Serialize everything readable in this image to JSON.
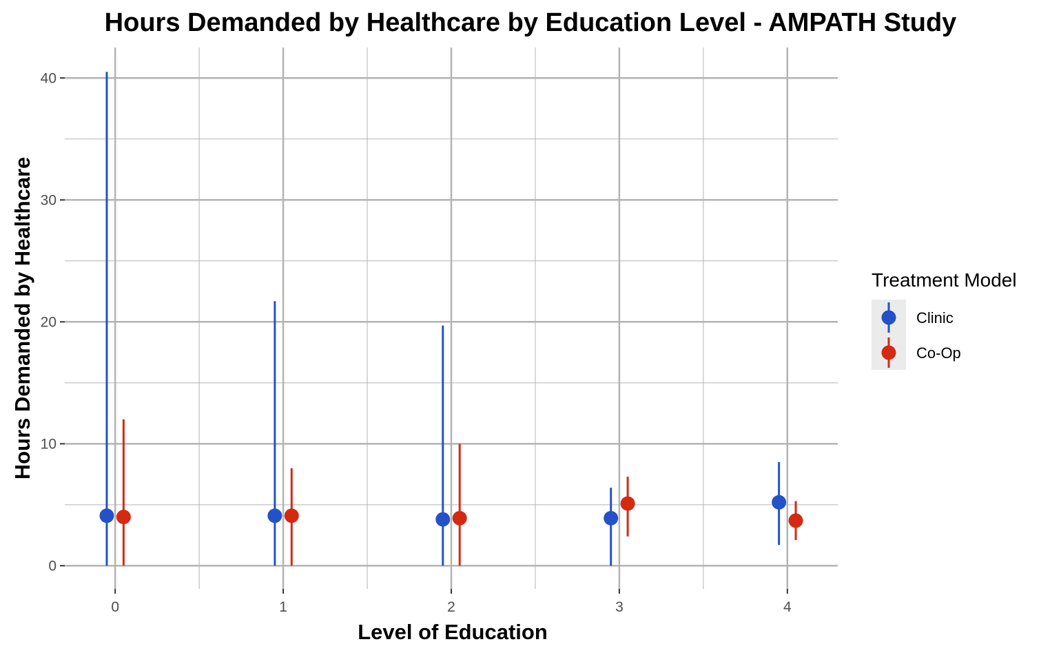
{
  "chart_data": {
    "type": "scatter",
    "subtype": "point-range",
    "title": "Hours Demanded by Healthcare by Education Level - AMPATH Study",
    "xlabel": "Level of Education",
    "ylabel": "Hours Demanded by Healthcare",
    "x": [
      0,
      1,
      2,
      3,
      4
    ],
    "xlim": [
      -0.3,
      4.3
    ],
    "ylim": [
      -1.9,
      42.5
    ],
    "yticks": [
      0,
      10,
      20,
      30,
      40
    ],
    "xticks": [
      0,
      1,
      2,
      3,
      4
    ],
    "grid": true,
    "legend": {
      "title": "Treatment Model",
      "position": "right"
    },
    "series": [
      {
        "name": "Clinic",
        "color": "#2451c7",
        "y": [
          4.1,
          4.1,
          3.8,
          3.9,
          5.2
        ],
        "ymin": [
          0,
          0,
          0,
          0,
          1.7
        ],
        "ymax": [
          40.5,
          21.7,
          19.7,
          6.4,
          8.5
        ]
      },
      {
        "name": "Co-Op",
        "color": "#d42a12",
        "y": [
          4.0,
          4.1,
          3.9,
          5.1,
          3.7
        ],
        "ymin": [
          0,
          0,
          0,
          2.4,
          2.1
        ],
        "ymax": [
          12.0,
          8.0,
          10.0,
          7.3,
          5.3
        ]
      }
    ]
  }
}
